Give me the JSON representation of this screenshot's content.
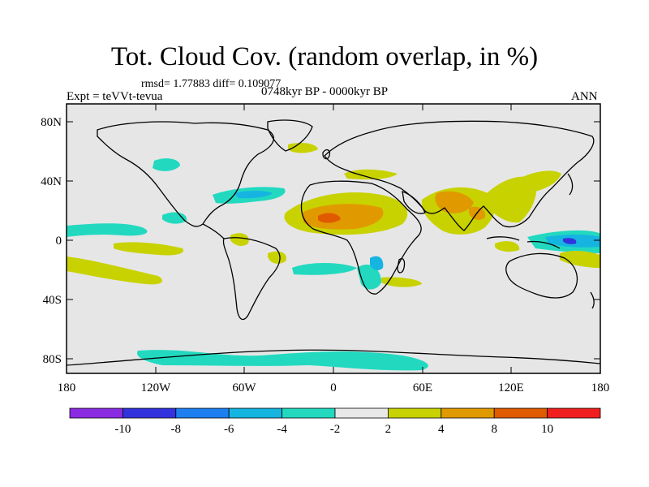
{
  "plot": {
    "title": "Tot. Cloud Cov. (random overlap, in %)",
    "stats": "rmsd= 1.77883 diff= 0.109077",
    "experiment": "Expt = teVVt-tevua",
    "period": "0748kyr BP - 0000kyr BP",
    "season": "ANN"
  },
  "axes": {
    "lat_labels": [
      "80N",
      "40N",
      "0",
      "40S",
      "80S"
    ],
    "lat_values": [
      80,
      40,
      0,
      -40,
      -80
    ],
    "lon_labels": [
      "180",
      "120W",
      "60W",
      "0",
      "60E",
      "120E",
      "180"
    ],
    "lon_values": [
      -180,
      -120,
      -60,
      0,
      60,
      120,
      180
    ],
    "lat_range": [
      -90,
      90
    ],
    "lon_range": [
      -180,
      180
    ]
  },
  "colorbar": {
    "levels": [
      "-10",
      "-8",
      "-6",
      "-4",
      "-2",
      "2",
      "4",
      "8",
      "10"
    ],
    "colors": [
      "#8a2be2",
      "#3333dd",
      "#1e7ff0",
      "#16b4e0",
      "#22d9c0",
      "#e8e8e8",
      "#c8d200",
      "#e09a00",
      "#e05a00",
      "#f01e1e"
    ]
  },
  "colors": {
    "land_background": "#e6e6e6",
    "coastline": "#000000"
  }
}
